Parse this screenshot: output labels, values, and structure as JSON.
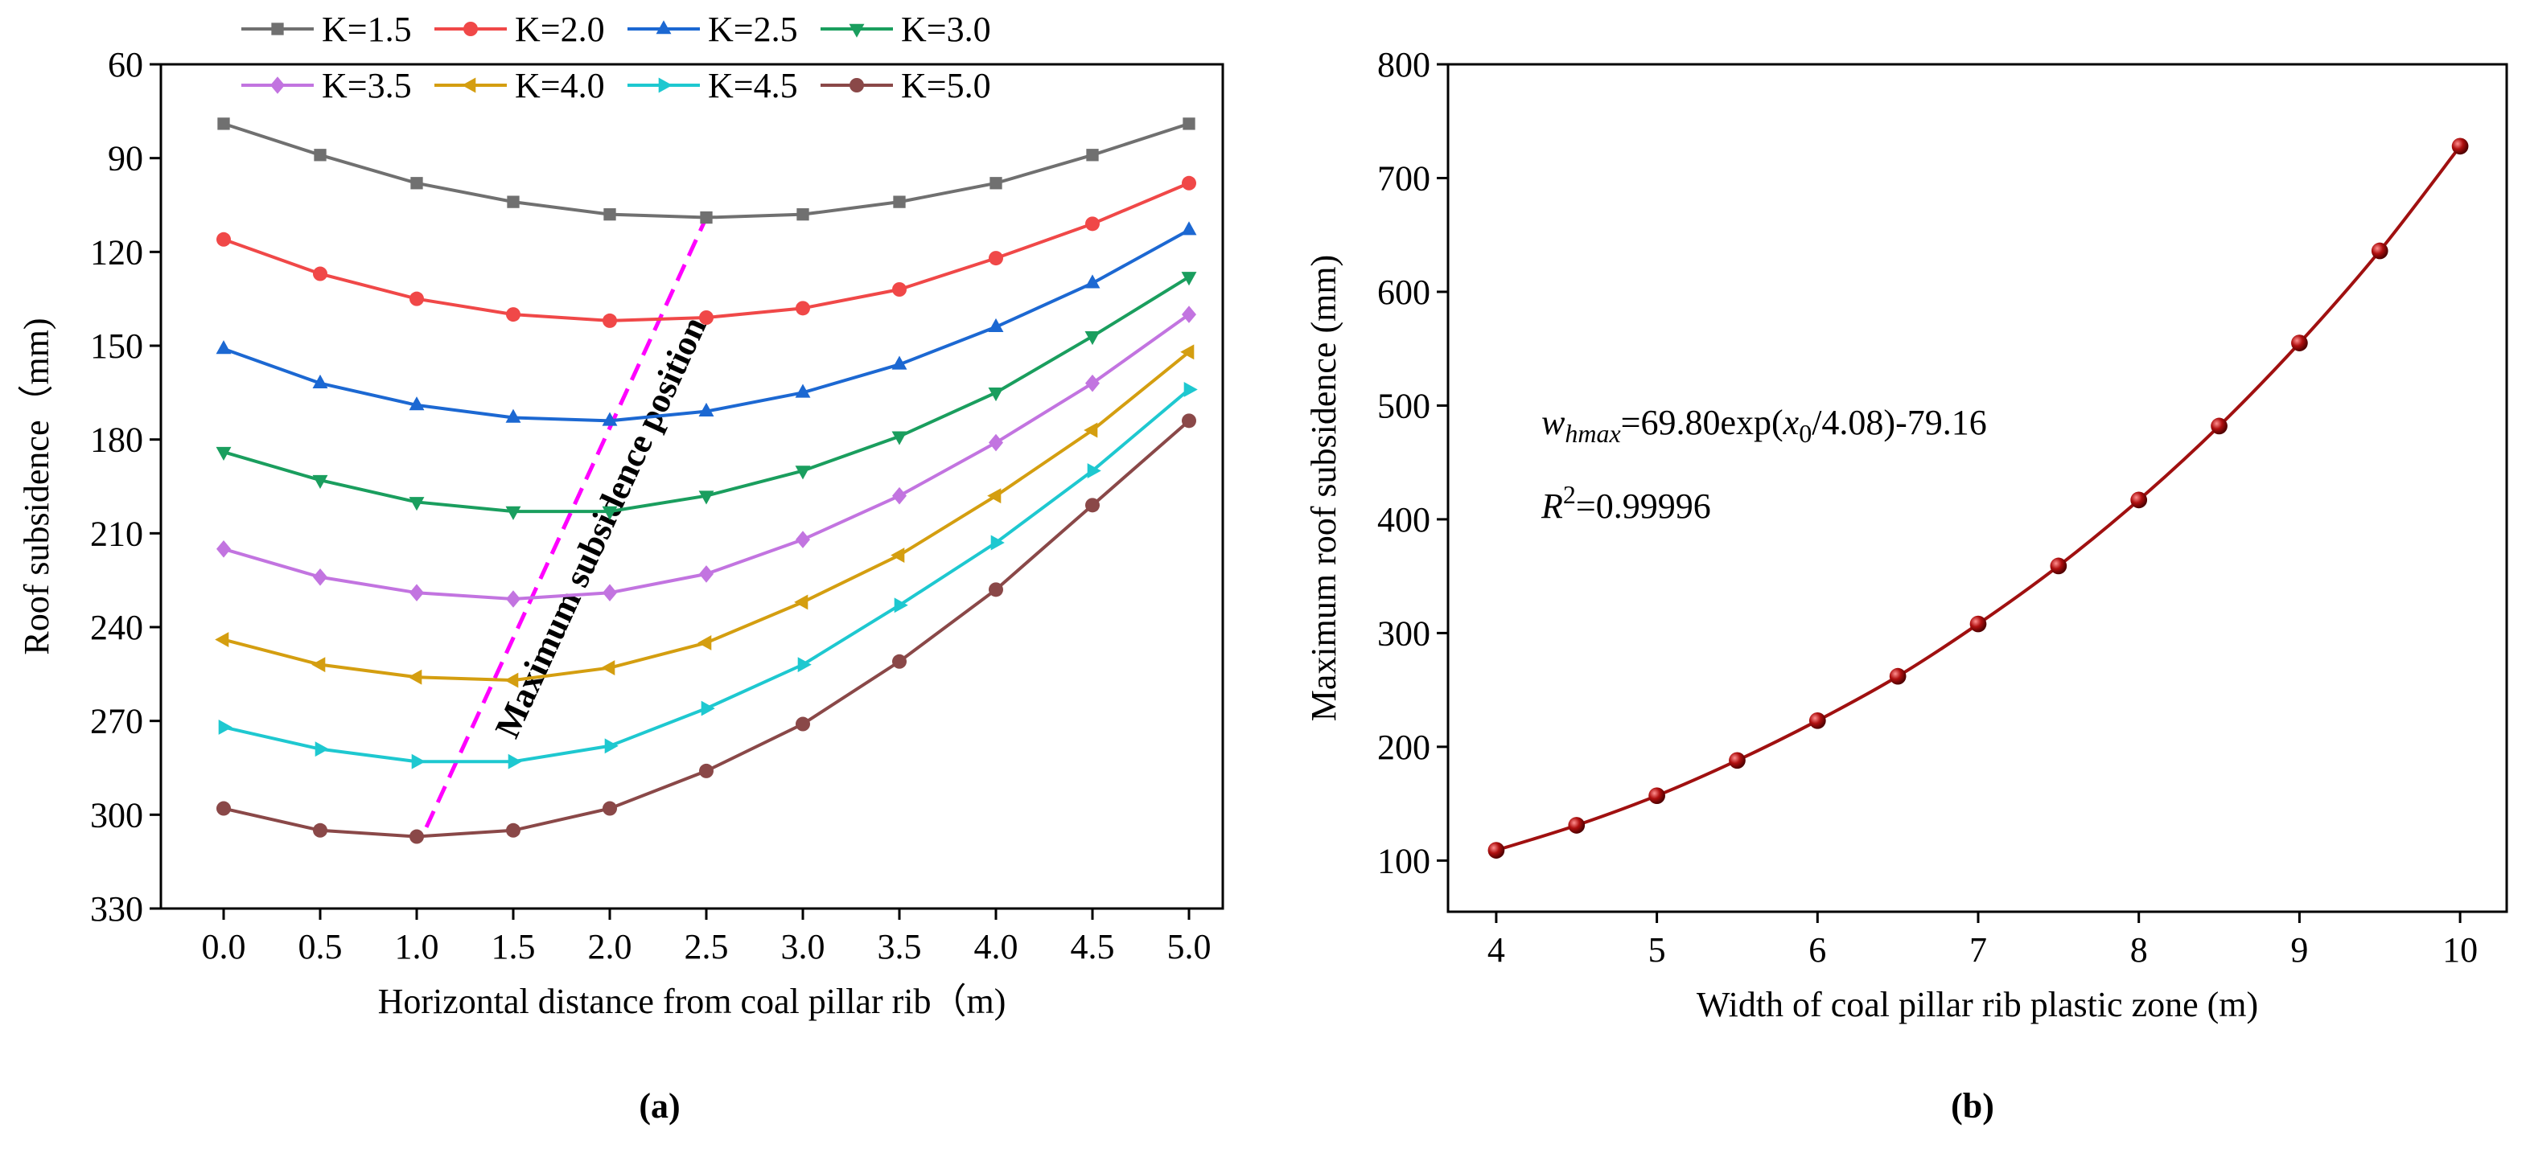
{
  "chart_data": [
    {
      "type": "line",
      "x_label": "Horizontal distance from coal pillar rib（m)",
      "y_label": "Roof subsidence（mm)",
      "panel_label": "(a)",
      "x": [
        0,
        0.5,
        1,
        1.5,
        2,
        2.5,
        3,
        3.5,
        4,
        4.5,
        5
      ],
      "xlim": [
        -0.325,
        5.175
      ],
      "xticks": [
        {
          "value": 0,
          "label": "0.0"
        },
        0.5,
        {
          "value": 1,
          "label": "1.0"
        },
        1.5,
        {
          "value": 2,
          "label": "2.0"
        },
        2.5,
        {
          "value": 3,
          "label": "3.0"
        },
        3.5,
        {
          "value": 4,
          "label": "4.0"
        },
        4.5,
        {
          "value": 5,
          "label": "5.0"
        }
      ],
      "ylim": [
        60,
        330
      ],
      "y_reversed": true,
      "yticks": [
        60,
        90,
        120,
        150,
        180,
        210,
        240,
        270,
        300,
        330
      ],
      "legend": "top",
      "series": [
        {
          "name": "K=1.5",
          "color": "#707070",
          "marker": "square",
          "values": [
            79,
            89,
            98,
            104,
            108,
            109,
            108,
            104,
            98,
            89,
            79
          ]
        },
        {
          "name": "K=2.0",
          "color": "#f04848",
          "marker": "circle",
          "values": [
            116,
            127,
            135,
            140,
            142,
            141,
            138,
            132,
            122,
            111,
            98
          ]
        },
        {
          "name": "K=2.5",
          "color": "#1c68d2",
          "marker": "triangle-up",
          "values": [
            151,
            162,
            169,
            173,
            174,
            171,
            165,
            156,
            144,
            130,
            113
          ]
        },
        {
          "name": "K=3.0",
          "color": "#1a9e5e",
          "marker": "triangle-down",
          "values": [
            184,
            193,
            200,
            203,
            203,
            198,
            190,
            179,
            165,
            147,
            128
          ]
        },
        {
          "name": "K=3.5",
          "color": "#c274e0",
          "marker": "diamond",
          "values": [
            215,
            224,
            229,
            231,
            229,
            223,
            212,
            198,
            181,
            162,
            140
          ]
        },
        {
          "name": "K=4.0",
          "color": "#d49e10",
          "marker": "triangle-left",
          "values": [
            244,
            252,
            256,
            257,
            253,
            245,
            232,
            217,
            198,
            177,
            152
          ]
        },
        {
          "name": "K=4.5",
          "color": "#1ec8d0",
          "marker": "triangle-right",
          "values": [
            272,
            279,
            283,
            283,
            278,
            266,
            252,
            233,
            213,
            190,
            164
          ]
        },
        {
          "name": "K=5.0",
          "color": "#8a4848",
          "marker": "circle",
          "values": [
            298,
            305,
            307,
            305,
            298,
            286,
            271,
            251,
            228,
            201,
            174
          ]
        }
      ],
      "annotation": {
        "text": "Maximum subsidence position",
        "color": "#ff00ff",
        "x": [
          1.05,
          2.5
        ],
        "y": [
          304,
          109
        ]
      }
    },
    {
      "type": "line",
      "x_label": "Width of  coal pillar rib plastic zone (m)",
      "y_label": "Maximum roof subsidence (mm)",
      "panel_label": "(b)",
      "x": [
        4,
        4.5,
        5,
        5.5,
        6,
        6.5,
        7,
        7.5,
        8,
        8.5,
        9,
        9.5,
        10
      ],
      "xlim": [
        3.7,
        10.29
      ],
      "xticks": [
        4,
        5,
        6,
        7,
        8,
        9,
        10
      ],
      "ylim": [
        55,
        800
      ],
      "yticks": [
        100,
        200,
        300,
        400,
        500,
        600,
        700,
        800
      ],
      "smooth": true,
      "series": [
        {
          "name": null,
          "color": "#a01010",
          "marker": "sphere",
          "values": [
            109,
            131,
            157,
            188,
            223,
            262,
            308,
            359,
            417,
            482,
            555,
            636,
            728
          ]
        }
      ],
      "equation": [
        "w",
        "hmax",
        "=69.80exp(",
        "x",
        "0",
        "/4.08)-79.16"
      ],
      "r_squared": [
        "R",
        "2",
        "=0.99996"
      ]
    }
  ]
}
